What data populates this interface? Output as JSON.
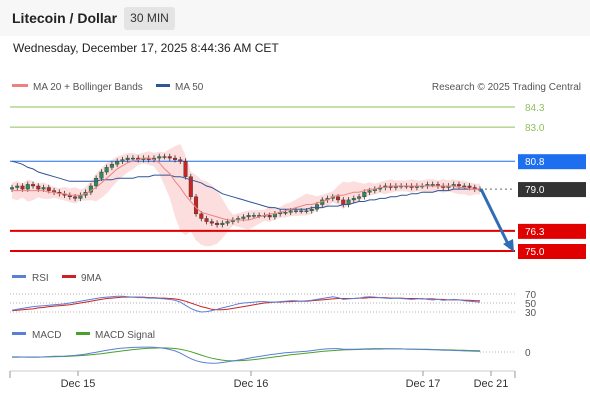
{
  "header": {
    "title": "Litecoin / Dollar",
    "interval": "30 MIN"
  },
  "datetime": "Wednesday, December 17, 2025 8:44:36 AM CET",
  "legend": {
    "ma20": "MA 20 + Bollinger Bands",
    "ma50": "MA 50"
  },
  "credit": "Research © 2025 Trading Central",
  "colors": {
    "ma20": "#f08080",
    "ma50": "#2f5597",
    "support": "#e00000",
    "pivot": "#1e6ef0",
    "resistance": "#8fbf5a",
    "last": "#333333",
    "up": "#2e8b57",
    "down": "#cc2222",
    "rsi": "#5b7fd6",
    "rsi_ma": "#cc2222",
    "macd": "#5b7fd6",
    "macd_signal": "#49a02c",
    "arrow": "#2f6db5"
  },
  "chart_data": [
    {
      "type": "candlestick",
      "title": "Litecoin / Dollar",
      "ylim": [
        73.8,
        85.2
      ],
      "x_ticks": [
        "Dec 15",
        "Dec 16",
        "Dec 17",
        "Dec 21"
      ],
      "levels": [
        {
          "value": 84.3,
          "label": "84.3",
          "kind": "resistance"
        },
        {
          "value": 83.0,
          "label": "83.0",
          "kind": "resistance"
        },
        {
          "value": 80.8,
          "label": "80.8",
          "kind": "pivot"
        },
        {
          "value": 79.0,
          "label": "79.0",
          "kind": "last"
        },
        {
          "value": 76.3,
          "label": "76.3",
          "kind": "support"
        },
        {
          "value": 75.0,
          "label": "75.0",
          "kind": "support"
        }
      ],
      "close": [
        79.1,
        79.2,
        79.0,
        79.3,
        79.2,
        79.0,
        79.1,
        78.9,
        78.8,
        78.7,
        78.6,
        78.5,
        78.4,
        78.6,
        78.8,
        79.2,
        79.7,
        80.1,
        80.4,
        80.6,
        80.8,
        80.9,
        81.0,
        81.0,
        80.9,
        81.0,
        80.9,
        81.0,
        81.1,
        81.1,
        81.0,
        80.9,
        80.8,
        79.8,
        78.5,
        77.4,
        77.1,
        76.9,
        76.8,
        76.7,
        76.8,
        76.9,
        77.0,
        77.1,
        77.2,
        77.3,
        77.3,
        77.3,
        77.3,
        77.2,
        77.4,
        77.5,
        77.5,
        77.6,
        77.6,
        77.6,
        77.6,
        77.7,
        78.0,
        78.3,
        78.4,
        78.5,
        78.3,
        78.0,
        78.3,
        78.4,
        78.5,
        78.8,
        78.9,
        79.0,
        79.1,
        79.2,
        79.1,
        79.2,
        79.2,
        79.2,
        79.1,
        79.2,
        79.2,
        79.3,
        79.3,
        79.2,
        79.1,
        79.2,
        79.3,
        79.2,
        79.2,
        79.1,
        79.0,
        79.0
      ],
      "ma20": [
        78.9,
        78.9,
        78.9,
        78.9,
        78.9,
        78.9,
        78.9,
        78.8,
        78.8,
        78.7,
        78.7,
        78.6,
        78.6,
        78.6,
        78.7,
        78.9,
        79.1,
        79.4,
        79.7,
        80.0,
        80.3,
        80.5,
        80.7,
        80.8,
        80.9,
        81.0,
        81.0,
        80.9,
        80.7,
        80.3,
        80.0,
        79.5,
        79.1,
        78.6,
        78.2,
        77.8,
        77.5,
        77.4,
        77.3,
        77.2,
        77.1,
        77.0,
        77.0,
        77.0,
        77.0,
        77.0,
        77.1,
        77.2,
        77.3,
        77.4,
        77.4,
        77.5,
        77.6,
        77.7,
        77.8,
        77.9,
        78.0,
        78.0,
        78.1,
        78.2,
        78.3,
        78.5,
        78.6,
        78.6,
        78.7,
        78.8,
        78.8,
        78.9,
        79.0,
        79.0,
        79.1,
        79.1,
        79.2,
        79.2,
        79.2,
        79.2,
        79.2,
        79.2,
        79.2,
        79.2,
        79.2,
        79.2,
        79.2,
        79.2,
        79.2,
        79.1,
        79.1,
        79.0,
        79.0,
        79.0
      ],
      "ma50": [
        80.8,
        80.7,
        80.6,
        80.4,
        80.3,
        80.1,
        80.0,
        79.9,
        79.8,
        79.7,
        79.6,
        79.5,
        79.5,
        79.5,
        79.5,
        79.5,
        79.5,
        79.6,
        79.6,
        79.6,
        79.7,
        79.7,
        79.7,
        79.7,
        79.8,
        79.8,
        79.8,
        79.9,
        79.9,
        79.9,
        79.9,
        79.8,
        79.8,
        79.7,
        79.6,
        79.5,
        79.4,
        79.2,
        79.1,
        78.9,
        78.7,
        78.6,
        78.5,
        78.4,
        78.3,
        78.2,
        78.1,
        78.0,
        77.9,
        77.8,
        77.8,
        77.7,
        77.7,
        77.7,
        77.7,
        77.7,
        77.7,
        77.8,
        77.8,
        77.8,
        77.9,
        77.9,
        77.9,
        78.0,
        78.0,
        78.1,
        78.2,
        78.2,
        78.3,
        78.3,
        78.4,
        78.4,
        78.5,
        78.5,
        78.6,
        78.6,
        78.7,
        78.7,
        78.8,
        78.8,
        78.8,
        78.9,
        78.9,
        78.9,
        79.0,
        79.0,
        79.0,
        79.0,
        79.0,
        79.0
      ],
      "forecast": {
        "from": 79.0,
        "to": 75.0
      }
    },
    {
      "type": "line",
      "levels": [
        {
          "value": 70,
          "label": "70"
        },
        {
          "value": 50,
          "label": "50"
        },
        {
          "value": 30,
          "label": "30"
        }
      ],
      "ylim": [
        22,
        78
      ],
      "series": [
        {
          "name": "RSI",
          "values": [
            34,
            36,
            38,
            40,
            42,
            43,
            44,
            45,
            46,
            47,
            48,
            50,
            52,
            54,
            56,
            58,
            60,
            62,
            63,
            64,
            65,
            65,
            64,
            63,
            62,
            62,
            61,
            61,
            60,
            59,
            58,
            56,
            52,
            45,
            38,
            33,
            30,
            31,
            33,
            36,
            39,
            42,
            45,
            48,
            50,
            51,
            52,
            53,
            53,
            52,
            52,
            53,
            54,
            55,
            55,
            54,
            55,
            56,
            58,
            60,
            62,
            64,
            62,
            58,
            59,
            60,
            61,
            63,
            64,
            63,
            62,
            61,
            60,
            61,
            60,
            59,
            58,
            59,
            60,
            58,
            57,
            58,
            56,
            57,
            58,
            57,
            55,
            54,
            53,
            52
          ]
        },
        {
          "name": "9MA",
          "values": [
            33,
            34,
            35,
            36,
            37,
            39,
            40,
            42,
            43,
            44,
            45,
            46,
            48,
            50,
            52,
            54,
            56,
            58,
            60,
            61,
            62,
            63,
            63,
            63,
            63,
            63,
            62,
            62,
            61,
            61,
            60,
            59,
            57,
            54,
            50,
            46,
            42,
            39,
            36,
            35,
            35,
            36,
            38,
            40,
            42,
            44,
            46,
            48,
            50,
            51,
            52,
            52,
            53,
            53,
            54,
            54,
            54,
            55,
            56,
            57,
            58,
            59,
            60,
            60,
            60,
            60,
            61,
            61,
            62,
            62,
            62,
            62,
            61,
            61,
            61,
            60,
            60,
            60,
            59,
            59,
            59,
            58,
            58,
            57,
            57,
            57,
            56,
            56,
            55,
            55
          ]
        }
      ]
    },
    {
      "type": "line",
      "levels": [
        {
          "value": 0,
          "label": "0"
        }
      ],
      "ylim": [
        -1.2,
        0.8
      ],
      "series": [
        {
          "name": "MACD",
          "values": [
            -0.38,
            -0.37,
            -0.36,
            -0.37,
            -0.38,
            -0.37,
            -0.35,
            -0.33,
            -0.31,
            -0.3,
            -0.29,
            -0.27,
            -0.24,
            -0.2,
            -0.15,
            -0.08,
            -0.02,
            0.05,
            0.12,
            0.18,
            0.24,
            0.28,
            0.31,
            0.33,
            0.34,
            0.35,
            0.35,
            0.34,
            0.31,
            0.26,
            0.18,
            0.08,
            -0.08,
            -0.28,
            -0.48,
            -0.62,
            -0.72,
            -0.78,
            -0.8,
            -0.79,
            -0.75,
            -0.7,
            -0.64,
            -0.58,
            -0.52,
            -0.45,
            -0.38,
            -0.32,
            -0.26,
            -0.2,
            -0.15,
            -0.1,
            -0.06,
            -0.03,
            0.0,
            0.03,
            0.06,
            0.1,
            0.15,
            0.19,
            0.22,
            0.24,
            0.24,
            0.2,
            0.19,
            0.2,
            0.21,
            0.22,
            0.23,
            0.24,
            0.24,
            0.24,
            0.23,
            0.23,
            0.22,
            0.21,
            0.2,
            0.19,
            0.18,
            0.17,
            0.16,
            0.15,
            0.13,
            0.12,
            0.11,
            0.1,
            0.08,
            0.07,
            0.05,
            0.04
          ]
        },
        {
          "name": "MACD Signal",
          "values": [
            -0.35,
            -0.35,
            -0.36,
            -0.36,
            -0.36,
            -0.36,
            -0.36,
            -0.35,
            -0.34,
            -0.33,
            -0.32,
            -0.3,
            -0.28,
            -0.26,
            -0.23,
            -0.2,
            -0.16,
            -0.12,
            -0.07,
            -0.02,
            0.03,
            0.08,
            0.13,
            0.17,
            0.21,
            0.24,
            0.27,
            0.28,
            0.29,
            0.29,
            0.28,
            0.25,
            0.2,
            0.12,
            0.02,
            -0.1,
            -0.22,
            -0.34,
            -0.44,
            -0.52,
            -0.58,
            -0.62,
            -0.63,
            -0.63,
            -0.61,
            -0.58,
            -0.54,
            -0.5,
            -0.45,
            -0.4,
            -0.35,
            -0.3,
            -0.25,
            -0.2,
            -0.16,
            -0.12,
            -0.08,
            -0.04,
            0.0,
            0.04,
            0.07,
            0.1,
            0.13,
            0.15,
            0.16,
            0.17,
            0.18,
            0.19,
            0.2,
            0.21,
            0.21,
            0.22,
            0.22,
            0.22,
            0.22,
            0.21,
            0.21,
            0.2,
            0.19,
            0.19,
            0.18,
            0.17,
            0.16,
            0.15,
            0.14,
            0.13,
            0.12,
            0.11,
            0.1,
            0.09
          ]
        }
      ]
    }
  ]
}
